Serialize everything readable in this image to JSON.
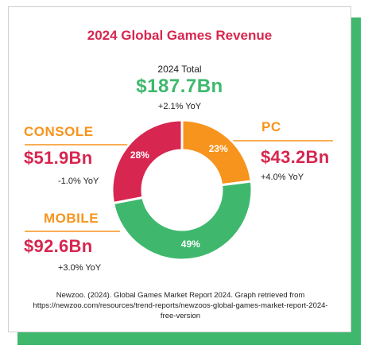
{
  "chart_data": {
    "type": "pie",
    "title": "2024 Global Games Revenue",
    "total": {
      "label": "2024 Total",
      "value": "$187.7Bn",
      "yoy": "+2.1% YoY"
    },
    "segments": [
      {
        "name": "PC",
        "revenue_bn": 43.2,
        "value_label": "$43.2Bn",
        "yoy": "+4.0% YoY",
        "percent": 23,
        "percent_label": "23%"
      },
      {
        "name": "MOBILE",
        "revenue_bn": 92.6,
        "value_label": "$92.6Bn",
        "yoy": "+3.0% YoY",
        "percent": 49,
        "percent_label": "49%"
      },
      {
        "name": "CONSOLE",
        "revenue_bn": 51.9,
        "value_label": "$51.9Bn",
        "yoy": "-1.0% YoY",
        "percent": 28,
        "percent_label": "28%"
      }
    ],
    "source_line1": "Newzoo. (2024). Global Games Market Report 2024. Graph retrieved from",
    "source_line2": "https://newzoo.com/resources/trend-reports/newzoos-global-games-market-report-2024-",
    "source_line3": "free-version"
  },
  "colors": {
    "title": "#d7264f",
    "total_value": "#3fb86e",
    "pc": "#f7941d",
    "mobile": "#3fb86e",
    "console": "#d7264f",
    "shadow": "#3fb86e"
  }
}
